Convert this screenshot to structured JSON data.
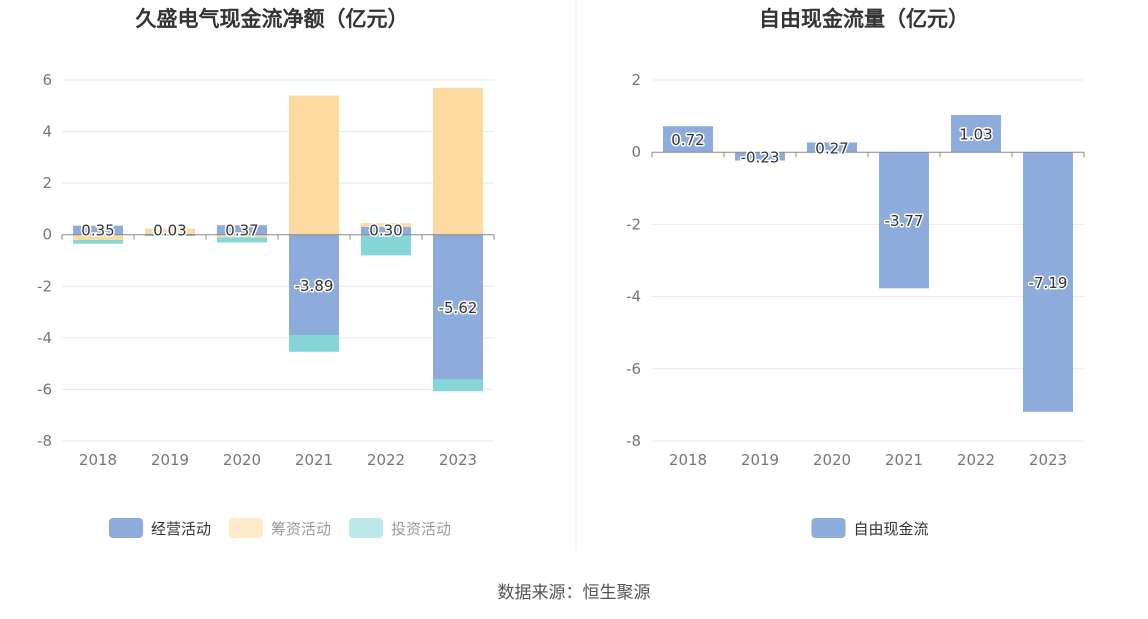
{
  "chart_data": [
    {
      "type": "bar",
      "stacked": true,
      "title": "久盛电气现金流净额（亿元）",
      "categories": [
        "2018",
        "2019",
        "2020",
        "2021",
        "2022",
        "2023"
      ],
      "ylim": [
        -8,
        6
      ],
      "yticks": [
        "6",
        "4",
        "2",
        "0",
        "-2",
        "-4",
        "-6",
        "-8"
      ],
      "ytick_values": [
        6,
        4,
        2,
        0,
        -2,
        -4,
        -6,
        -8
      ],
      "series": [
        {
          "name": "经营活动",
          "color": "#8dabdb",
          "values": [
            0.35,
            0.03,
            0.37,
            -3.89,
            0.3,
            -5.62
          ]
        },
        {
          "name": "筹资活动",
          "color": "#fddba0",
          "values": [
            -0.2,
            0.2,
            -0.1,
            5.4,
            0.15,
            5.7
          ]
        },
        {
          "name": "投资活动",
          "color": "#86d5d8",
          "values": [
            -0.15,
            -0.05,
            -0.2,
            -0.65,
            -0.8,
            -0.45
          ]
        }
      ],
      "data_labels": [
        "0.35",
        "0.03",
        "0.37",
        "-3.89",
        "0.30",
        "-5.62"
      ],
      "legend_position": "bottom",
      "grid": true
    },
    {
      "type": "bar",
      "title": "自由现金流量（亿元）",
      "categories": [
        "2018",
        "2019",
        "2020",
        "2021",
        "2022",
        "2023"
      ],
      "ylim": [
        -8,
        2
      ],
      "yticks": [
        "2",
        "0",
        "-2",
        "-4",
        "-6",
        "-8"
      ],
      "ytick_values": [
        2,
        0,
        -2,
        -4,
        -6,
        -8
      ],
      "series": [
        {
          "name": "自由现金流",
          "color": "#8dabdb",
          "values": [
            0.72,
            -0.23,
            0.27,
            -3.77,
            1.03,
            -7.19
          ]
        }
      ],
      "data_labels": [
        "0.72",
        "-0.23",
        "0.27",
        "-3.77",
        "1.03",
        "-7.19"
      ],
      "legend_position": "bottom",
      "grid": true
    }
  ],
  "source": "数据来源：恒生聚源"
}
